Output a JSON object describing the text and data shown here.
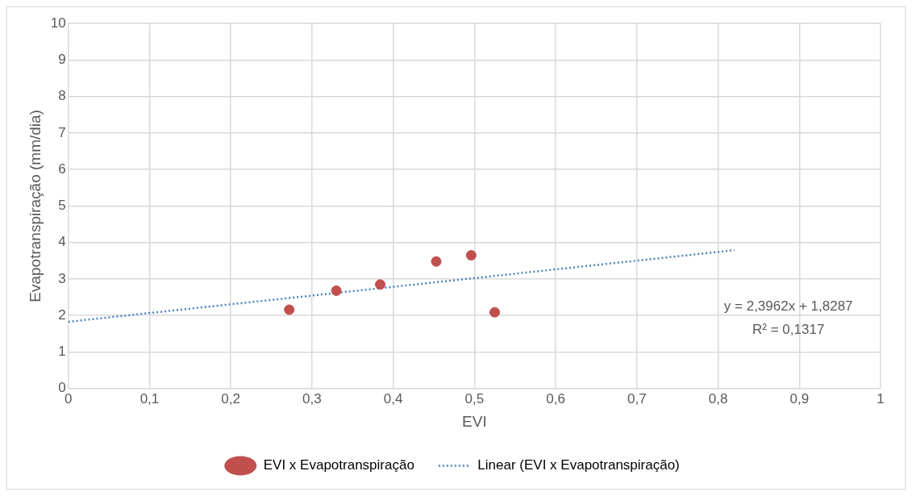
{
  "chart_data": {
    "type": "scatter",
    "xlabel": "EVI",
    "ylabel": "Evapotranspiração (mm/dia)",
    "xlim": [
      0,
      1
    ],
    "xticks": [
      0,
      {
        "value": 0.1,
        "label": "0,1"
      },
      {
        "value": 0.2,
        "label": "0,2"
      },
      {
        "value": 0.3,
        "label": "0,3"
      },
      {
        "value": 0.4,
        "label": "0,4"
      },
      {
        "value": 0.5,
        "label": "0,5"
      },
      {
        "value": 0.6,
        "label": "0,6"
      },
      {
        "value": 0.7,
        "label": "0,7"
      },
      {
        "value": 0.8,
        "label": "0,8"
      },
      {
        "value": 0.9,
        "label": "0,9"
      },
      1
    ],
    "ylim": [
      0,
      10
    ],
    "yticks": [
      0,
      1,
      2,
      3,
      4,
      5,
      6,
      7,
      8,
      9,
      10
    ],
    "grid": true,
    "legend": "bottom",
    "marker": "circle",
    "series": [
      {
        "name": "EVI x Evapotranspiração",
        "type": "scatter",
        "color": "#c0504d",
        "x": [
          0.272,
          0.33,
          0.384,
          0.453,
          0.496,
          0.525
        ],
        "values": [
          2.16,
          2.68,
          2.85,
          3.48,
          3.65,
          2.09
        ]
      },
      {
        "name": "Linear (EVI x Evapotranspiração)",
        "type": "line",
        "color": "#4f81bd",
        "line_style": "dotted",
        "marker": "none",
        "x": [
          0,
          0.82
        ],
        "values": [
          1.83,
          3.79
        ]
      }
    ],
    "annotations": [
      "y = 2,3962x + 1,8287",
      "R² = 0,1317"
    ]
  }
}
